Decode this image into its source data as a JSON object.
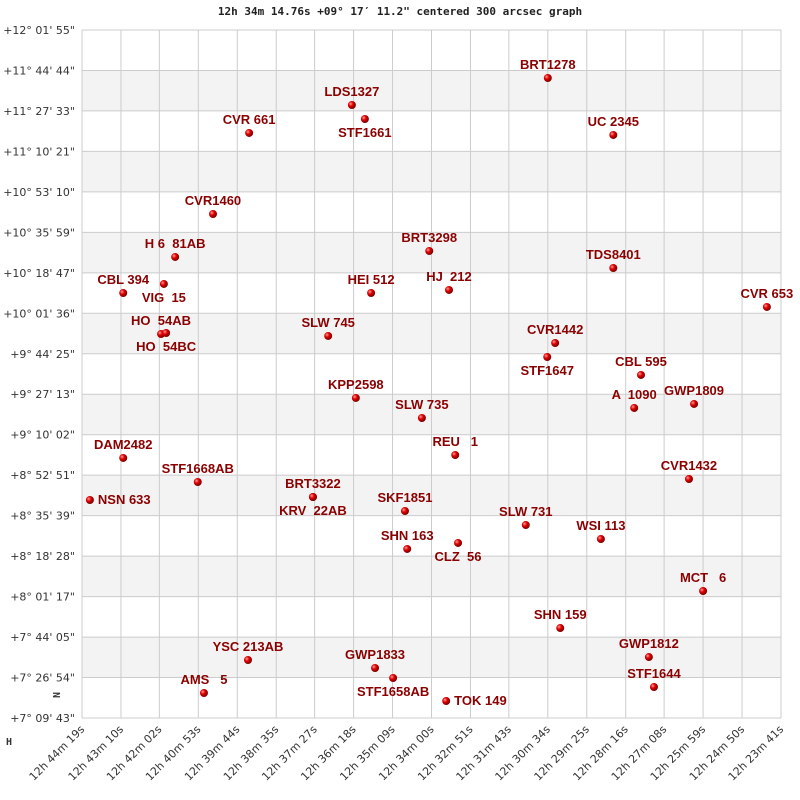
{
  "chart_data": {
    "type": "scatter",
    "title": "12h 34m 14.76s +09° 17′ 11.2\" centered 300 arcsec graph",
    "xlabel": "",
    "ylabel": "",
    "x_axis": "right ascension (decreasing to the right)",
    "xlim": [
      "12h 44m 19s",
      "12h 23m 41s"
    ],
    "ylim": [
      "+7° 09' 43\"",
      "+12° 01' 55\""
    ],
    "x_ticks": [
      "12h 44m 19s",
      "12h 43m 10s",
      "12h 42m 02s",
      "12h 40m 53s",
      "12h 39m 44s",
      "12h 38m 35s",
      "12h 37m 27s",
      "12h 36m 18s",
      "12h 35m 09s",
      "12h 34m 00s",
      "12h 32m 51s",
      "12h 31m 43s",
      "12h 30m 34s",
      "12h 29m 25s",
      "12h 28m 16s",
      "12h 27m 08s",
      "12h 25m 59s",
      "12h 24m 50s",
      "12h 23m 41s"
    ],
    "y_ticks": [
      "+12° 01' 55\"",
      "+11° 44' 44\"",
      "+11° 27' 33\"",
      "+11° 10' 21\"",
      "+10° 53' 10\"",
      "+10° 35' 59\"",
      "+10° 18' 47\"",
      "+10° 01' 36\"",
      "+9° 44' 25\"",
      "+9° 27' 13\"",
      "+9° 10' 02\"",
      "+8° 52' 51\"",
      "+8° 35' 39\"",
      "+8° 18' 28\"",
      "+8° 01' 17\"",
      "+7° 44' 05\"",
      "+7° 26' 54\"",
      "+7° 09' 43\""
    ],
    "grid": true,
    "alternating_bands": true,
    "orientation_marks": {
      "north": "N",
      "east": "H"
    },
    "colors": {
      "point": "#cc0000",
      "label": "#8b0000",
      "grid": "#cccccc",
      "band": "#f3f3f3"
    },
    "points": [
      {
        "name": "NSN 633",
        "ra": "12h 44m 05s",
        "dec": "+8° 42' 18\""
      },
      {
        "name": "DAM2482",
        "ra": "12h 43m 06s",
        "dec": "+9° 00' 09\""
      },
      {
        "name": "CBL 394",
        "ra": "12h 43m 06s",
        "dec": "+10° 10' 13\""
      },
      {
        "name": "HO  54AB",
        "ra": "12h 41m 59s",
        "dec": "+9° 52' 48\""
      },
      {
        "name": "HO  54BC",
        "ra": "12h 41m 50s",
        "dec": "+9° 53' 14\""
      },
      {
        "name": "VIG  15",
        "ra": "12h 41m 54s",
        "dec": "+10° 14' 03\""
      },
      {
        "name": "H 6  81AB",
        "ra": "12h 41m 34s",
        "dec": "+10° 25' 31\""
      },
      {
        "name": "CVR1460",
        "ra": "12h 40m 27s",
        "dec": "+10° 43' 46\""
      },
      {
        "name": "CVR 661",
        "ra": "12h 39m 23s",
        "dec": "+11° 18' 11\""
      },
      {
        "name": "STF1668AB",
        "ra": "12h 40m 54s",
        "dec": "+8° 49' 57\""
      },
      {
        "name": "YSC 213AB",
        "ra": "12h 39m 25s",
        "dec": "+7° 34' 21\""
      },
      {
        "name": "AMS   5",
        "ra": "12h 40m 43s",
        "dec": "+7° 20' 20\""
      },
      {
        "name": "LDS1327",
        "ra": "12h 36m 21s",
        "dec": "+11° 30' 04\""
      },
      {
        "name": "STF1661",
        "ra": "12h 35m 58s",
        "dec": "+11° 24' 07\""
      },
      {
        "name": "SLW 745",
        "ra": "12h 37m 03s",
        "dec": "+9° 51' 58\""
      },
      {
        "name": "HEI 512",
        "ra": "12h 35m 47s",
        "dec": "+10° 10' 13\""
      },
      {
        "name": "KPP2598",
        "ra": "12h 36m 14s",
        "dec": "+9° 25' 38\""
      },
      {
        "name": "BRT3322",
        "ra": "12h 37m 30s",
        "dec": "+8° 43' 35\""
      },
      {
        "name": "KRV  22AB",
        "ra": "12h 37m 30s",
        "dec": "+8° 43' 35\""
      },
      {
        "name": "SKF1851",
        "ra": "12h 34m 47s",
        "dec": "+8° 37' 38\""
      },
      {
        "name": "SHN 163",
        "ra": "12h 34m 43s",
        "dec": "+8° 21' 30\""
      },
      {
        "name": "GWP1833",
        "ra": "12h 35m 40s",
        "dec": "+7° 30' 57\""
      },
      {
        "name": "STF1658AB",
        "ra": "12h 35m 08s",
        "dec": "+7° 26' 42\""
      },
      {
        "name": "TOK 149",
        "ra": "12h 33m 34s",
        "dec": "+7° 16' 56\""
      },
      {
        "name": "BRT3298",
        "ra": "12h 34m 04s",
        "dec": "+10° 28' 04\""
      },
      {
        "name": "HJ  212",
        "ra": "12h 33m 29s",
        "dec": "+10° 11' 30\""
      },
      {
        "name": "SLW 735",
        "ra": "12h 34m 17s",
        "dec": "+9° 17' 08\""
      },
      {
        "name": "REU   1",
        "ra": "12h 33m 18s",
        "dec": "+9° 01' 25\""
      },
      {
        "name": "CLZ  56",
        "ra": "12h 33m 13s",
        "dec": "+8° 24' 03\""
      },
      {
        "name": "SLW 731",
        "ra": "12h 31m 13s",
        "dec": "+8° 31' 41\""
      },
      {
        "name": "BRT1278",
        "ra": "12h 30m 34s",
        "dec": "+11° 41' 32\""
      },
      {
        "name": "CVR1442",
        "ra": "12h 30m 21s",
        "dec": "+9° 48' 59\""
      },
      {
        "name": "STF1647",
        "ra": "12h 30m 35s",
        "dec": "+9° 43' 02\""
      },
      {
        "name": "SHN 159",
        "ra": "12h 30m 12s",
        "dec": "+7° 47' 56\""
      },
      {
        "name": "UC 2345",
        "ra": "12h 28m 38s",
        "dec": "+11° 17' 20\""
      },
      {
        "name": "TDS8401",
        "ra": "12h 28m 38s",
        "dec": "+10° 20' 50\""
      },
      {
        "name": "WSI 113",
        "ra": "12h 29m 00s",
        "dec": "+8° 25' 44\""
      },
      {
        "name": "CBL 595",
        "ra": "12h 27m 49s",
        "dec": "+9° 35' 24\""
      },
      {
        "name": "A  1090",
        "ra": "12h 28m 01s",
        "dec": "+9° 21' 23\""
      },
      {
        "name": "GWP1809",
        "ra": "12h 26m 15s",
        "dec": "+9° 23' 05\""
      },
      {
        "name": "CVR1432",
        "ra": "12h 26m 24s",
        "dec": "+8° 51' 13\""
      },
      {
        "name": "MCT   6",
        "ra": "12h 25m 59s",
        "dec": "+8° 03' 39\""
      },
      {
        "name": "GWP1812",
        "ra": "12h 27m 35s",
        "dec": "+7° 35' 37\""
      },
      {
        "name": "STF1644",
        "ra": "12h 27m 26s",
        "dec": "+7° 22' 53\""
      },
      {
        "name": "CVR 653",
        "ra": "12h 24m 06s",
        "dec": "+10° 04' 17\""
      }
    ]
  }
}
